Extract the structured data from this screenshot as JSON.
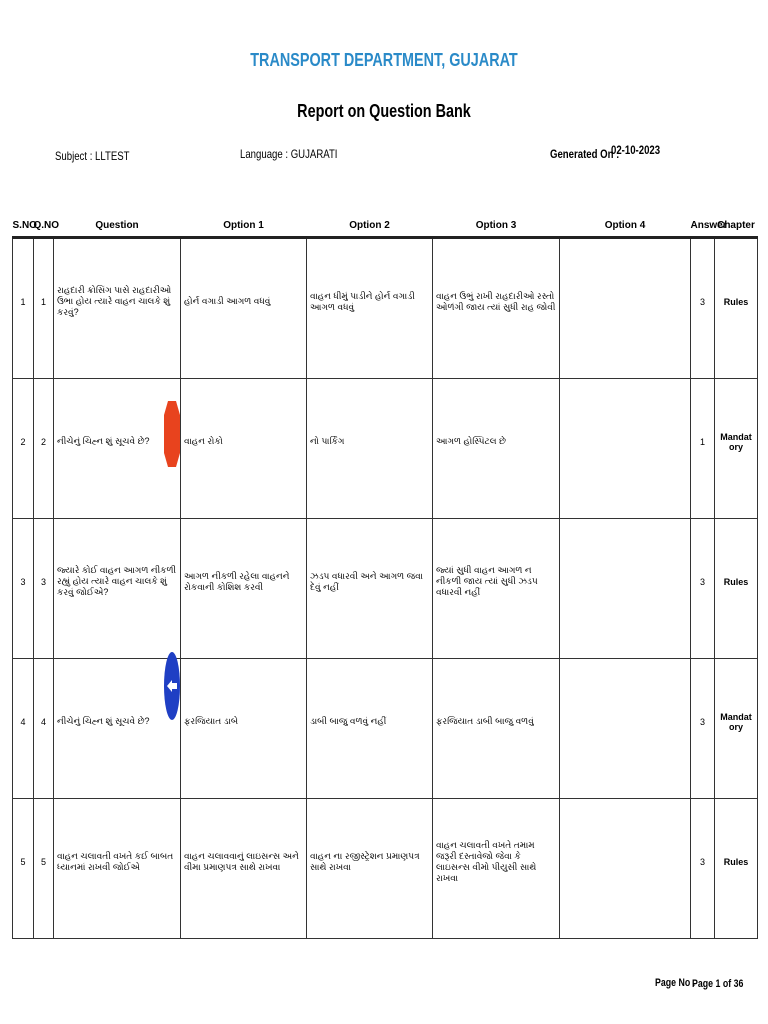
{
  "header": {
    "title": "TRANSPORT DEPARTMENT, GUJARAT",
    "subtitle": "Report on Question Bank"
  },
  "meta": {
    "subject": "Subject : LLTEST",
    "language": "Language : GUJARATI",
    "generated_label": "Generated On :",
    "generated_date": "02-10-2023"
  },
  "table": {
    "columns": [
      "S.NO",
      "Q.NO",
      "Question",
      "Option 1",
      "Option 2",
      "Option 3",
      "Option 4",
      "Answer",
      "Chapter"
    ],
    "rows": [
      [
        "1",
        "1",
        "રાહદારી ક્રોસિંગ પાસે રાહદારીઓ ઉભા હોય ત્યારે વાહન ચાલકે શું કરવું?",
        "હોર્ન વગાડી આગળ વધવું",
        "વાહન ધીમું પાડીને હોર્ન વગાડી આગળ વધવું",
        "વાહન ઉભું રાખી રાહદારીઓ રસ્તો ઓળંગી જાય ત્યાં સુધી રાહ જોવી",
        "",
        "3",
        "Rules"
      ],
      [
        "2",
        "2",
        "નીચેનું ચિહ્ન શું સૂચવે છે?",
        "વાહન રોકો",
        "નો પાર્કિંગ",
        "આગળ હોસ્પિટલ છે",
        "",
        "1",
        "Mandatory"
      ],
      [
        "3",
        "3",
        "જ્યારે કોઈ વાહન આગળ નીકળી રહ્યું હોય ત્યારે વાહન ચાલકે શું કરવું જોઈએ?",
        "આગળ નીકળી રહેલા વાહનને રોકવાની કોશિશ કરવી",
        "ઝડપ વધારવી અને આગળ જવા દેવું નહીં",
        "જ્યાં સુધી વાહન આગળ ન નીકળી જાય ત્યાં સુધી ઝડપ વધારવી નહીં",
        "",
        "3",
        "Rules"
      ],
      [
        "4",
        "4",
        "નીચેનું ચિહ્ન શું સૂચવે છે?",
        "ફરજિયાત ડાબે",
        "ડાબી બાજુ વળવું નહીં",
        "ફરજિયાત ડાબી બાજુ વળવું",
        "",
        "3",
        "Mandatory"
      ],
      [
        "5",
        "5",
        "વાહન ચલાવતી વખતે કઈ બાબત ધ્યાનમાં રાખવી જોઈએ",
        "વાહન ચલાવવાનું લાઇસન્સ અને વીમા પ્રમાણપત્ર સાથે રાખવા",
        "વાહન ના રજીસ્ટ્રેશન પ્રમાણપત્ર સાથે રાખવા",
        "વાહન ચલાવતી વખતે તમામ જરૂરી દસ્તાવેજો જેવા કે લાઇસન્સ વીમો પીયુસી સાથે રાખવા",
        "",
        "3",
        "Rules"
      ]
    ]
  },
  "footer": {
    "page_label": "Page No .",
    "page_value": "Page 1 of 36"
  }
}
